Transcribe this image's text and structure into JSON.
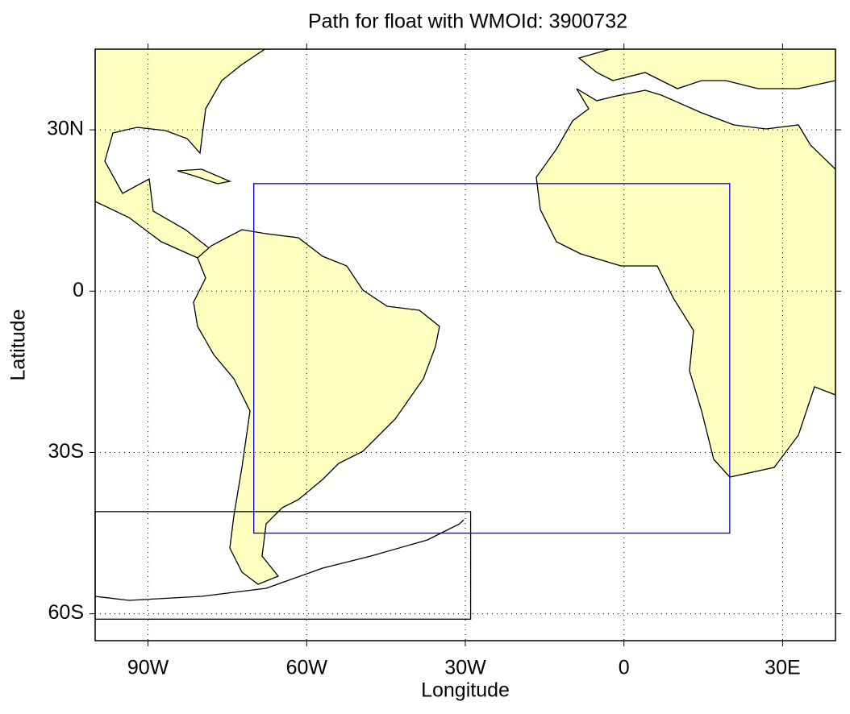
{
  "chart_data": {
    "type": "map",
    "title": "Path for float with WMOId: 3900732",
    "xlabel": "Longitude",
    "ylabel": "Latitude",
    "xlim": [
      -100,
      40
    ],
    "ylim": [
      -65,
      45
    ],
    "xticks": [
      {
        "value": -90,
        "label": "90W"
      },
      {
        "value": -60,
        "label": "60W"
      },
      {
        "value": -30,
        "label": "30W"
      },
      0,
      {
        "value": 30,
        "label": "30E"
      }
    ],
    "yticks": [
      {
        "value": -60,
        "label": "60S"
      },
      {
        "value": -30,
        "label": "30S"
      },
      0,
      {
        "value": 30,
        "label": "30N"
      }
    ],
    "grid": true,
    "regions": [
      {
        "color": "#0000cc",
        "lon": [
          -70,
          20
        ],
        "lat": [
          -45,
          20
        ]
      },
      {
        "color": "#000000",
        "lon": [
          -100,
          -29
        ],
        "lat": [
          -61,
          -41
        ]
      }
    ]
  }
}
